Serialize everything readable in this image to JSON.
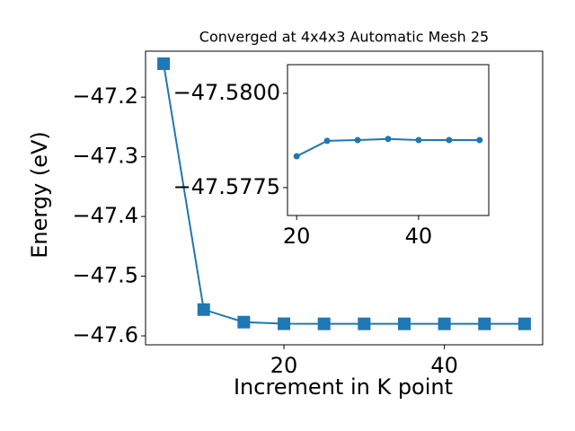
{
  "chart_data": [
    {
      "type": "line",
      "title": "Converged at 4x4x3 Automatic Mesh 25",
      "x_label": "Increment in K point",
      "y_label": "Energy (eV)",
      "x": [
        5,
        10,
        15,
        20,
        25,
        30,
        35,
        40,
        45,
        50
      ],
      "series": [
        {
          "color": "#1f77b4",
          "marker": "square",
          "values": [
            -47.144,
            -47.556,
            -47.577,
            -47.5797,
            -47.5799,
            -47.5799,
            -47.5799,
            -47.5799,
            -47.5799,
            -47.5799
          ]
        }
      ],
      "xlim": [
        2.75,
        52.25
      ],
      "xticks": [
        20,
        40
      ],
      "ylim": [
        -47.615,
        -47.123
      ],
      "yticks": [
        {
          "value": -47.2,
          "label": "−47.2"
        },
        {
          "value": -47.3,
          "label": "−47.3"
        },
        {
          "value": -47.4,
          "label": "−47.4"
        },
        {
          "value": -47.5,
          "label": "−47.5"
        },
        {
          "value": -47.6,
          "label": "−47.6"
        }
      ]
    },
    {
      "type": "line",
      "x": [
        20,
        25,
        30,
        35,
        40,
        45,
        50
      ],
      "series": [
        {
          "color": "#1f77b4",
          "marker": "circle",
          "values": [
            -47.57833,
            -47.57874,
            -47.57876,
            -47.57879,
            -47.57876,
            -47.57876,
            -47.57876
          ]
        }
      ],
      "xlim": [
        18.5,
        51.5
      ],
      "xticks": [
        20,
        40
      ],
      "ylim": [
        -47.57676,
        -47.58076
      ],
      "yticks": [
        {
          "value": -47.58,
          "label": "−47.5800"
        },
        {
          "value": -47.5775,
          "label": "−47.5775"
        }
      ]
    }
  ]
}
